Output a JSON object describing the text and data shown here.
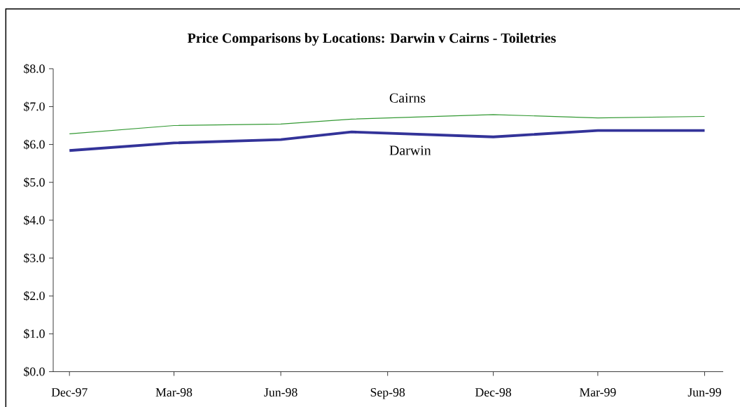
{
  "chart_data": {
    "type": "line",
    "title": "Price Comparisons by Locations: Darwin v Cairns - Toiletries",
    "x": [
      "1997-12-15",
      "1998-03-15",
      "1998-06-15",
      "1998-08-15",
      "1998-12-15",
      "1999-03-15",
      "1999-06-15"
    ],
    "series": [
      {
        "name": "Darwin",
        "color": "#333399",
        "values": [
          5.84,
          6.04,
          6.13,
          6.33,
          6.2,
          6.37,
          6.37
        ]
      },
      {
        "name": "Cairns",
        "color": "#339933",
        "values": [
          6.28,
          6.5,
          6.54,
          6.67,
          6.79,
          6.7,
          6.74
        ]
      }
    ],
    "xlim": [
      "1997-12-01",
      "1999-07-01"
    ],
    "xticks": [
      {
        "value": "1997-12-15",
        "label": "Dec-97"
      },
      {
        "value": "1998-03-15",
        "label": "Mar-98"
      },
      {
        "value": "1998-06-15",
        "label": "Jun-98"
      },
      {
        "value": "1998-09-15",
        "label": "Sep-98"
      },
      {
        "value": "1998-12-15",
        "label": "Dec-98"
      },
      {
        "value": "1999-03-15",
        "label": "Mar-99"
      },
      {
        "value": "1999-06-15",
        "label": "Jun-99"
      }
    ],
    "ylim": [
      0,
      8
    ],
    "yticks": [
      {
        "value": 0,
        "label": "$0.0"
      },
      {
        "value": 1,
        "label": "$1.0"
      },
      {
        "value": 2,
        "label": "$2.0"
      },
      {
        "value": 3,
        "label": "$3.0"
      },
      {
        "value": 4,
        "label": "$4.0"
      },
      {
        "value": 5,
        "label": "$5.0"
      },
      {
        "value": 6,
        "label": "$6.0"
      },
      {
        "value": 7,
        "label": "$7.0"
      },
      {
        "value": 8,
        "label": "$8.0"
      }
    ],
    "marker": "none",
    "line_style": "solid"
  }
}
